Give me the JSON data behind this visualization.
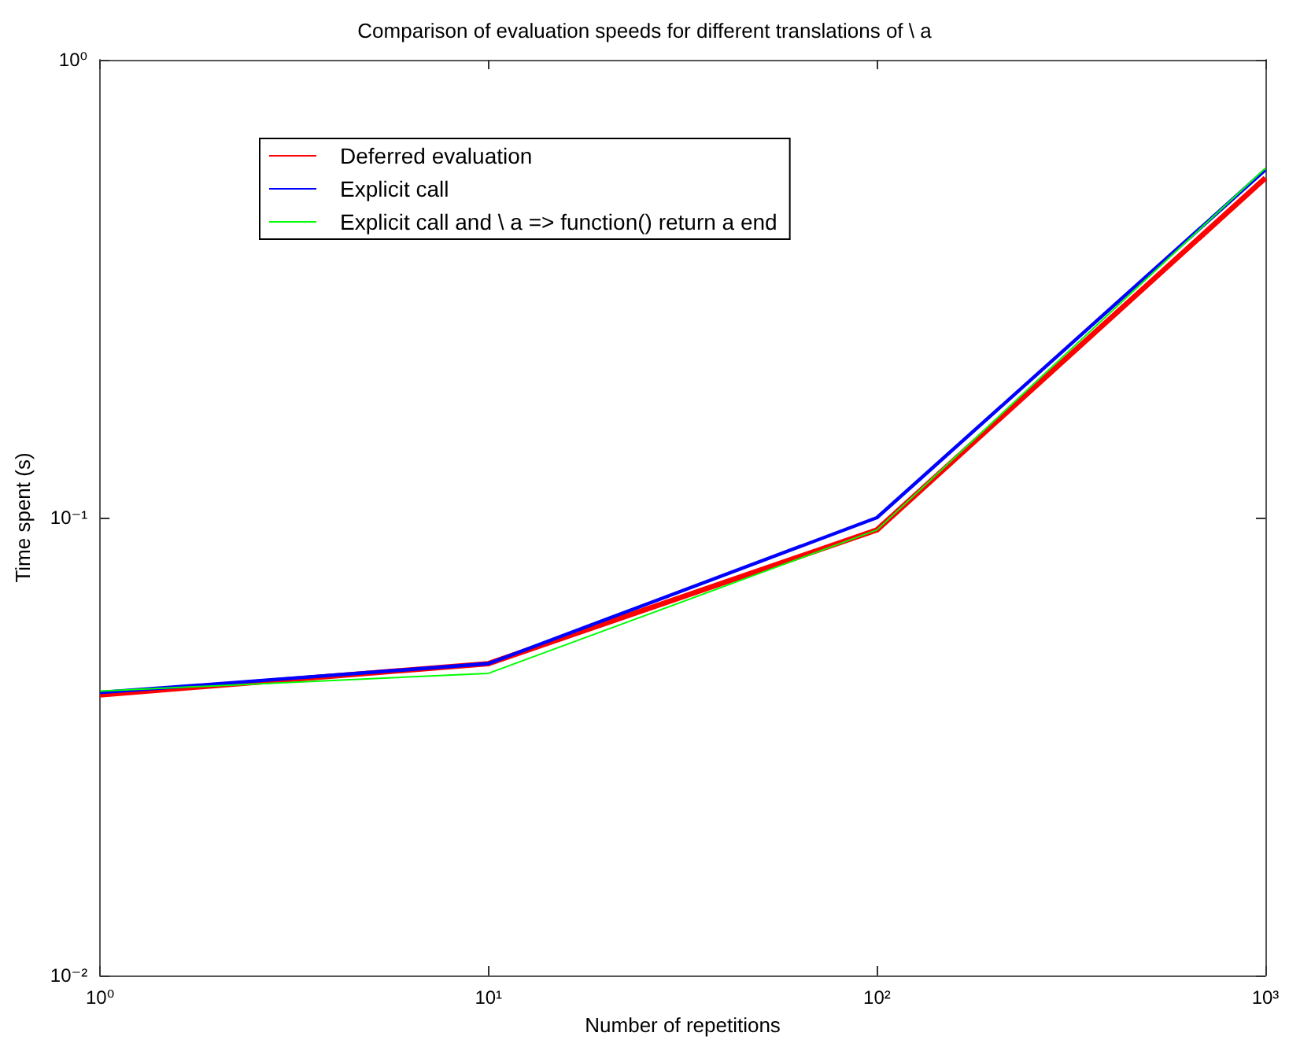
{
  "chart_data": {
    "type": "line",
    "title": "Comparison of evaluation speeds for different translations of \\ a",
    "xlabel": "Number of repetitions",
    "ylabel": "Time spent (s)",
    "x": [
      1,
      10,
      100,
      1000
    ],
    "series": [
      {
        "name": "Deferred evaluation",
        "color": "#ff0000",
        "values": [
          0.041,
          0.048,
          0.094,
          0.552
        ]
      },
      {
        "name": "Explicit call",
        "color": "#0000ff",
        "values": [
          0.0415,
          0.048,
          0.1,
          0.575
        ]
      },
      {
        "name": "Explicit call and \\ a => function() return a end",
        "color": "#00ff00",
        "values": [
          0.0418,
          0.0457,
          0.094,
          0.58
        ]
      }
    ],
    "log": "xy",
    "xlim": [
      1,
      1000
    ],
    "ylim": [
      0.01,
      1
    ],
    "xticks": [
      {
        "value": 1,
        "label": "10⁰"
      },
      {
        "value": 10,
        "label": "10¹"
      },
      {
        "value": 100,
        "label": "10²"
      },
      {
        "value": 1000,
        "label": "10³"
      }
    ],
    "yticks": [
      {
        "value": 0.01,
        "label": "10⁻²"
      },
      {
        "value": 0.1,
        "label": "10⁻¹"
      },
      {
        "value": 1,
        "label": "10⁰"
      }
    ],
    "legend": "top left",
    "grid": false,
    "marker": "none",
    "line_style": "solid"
  }
}
